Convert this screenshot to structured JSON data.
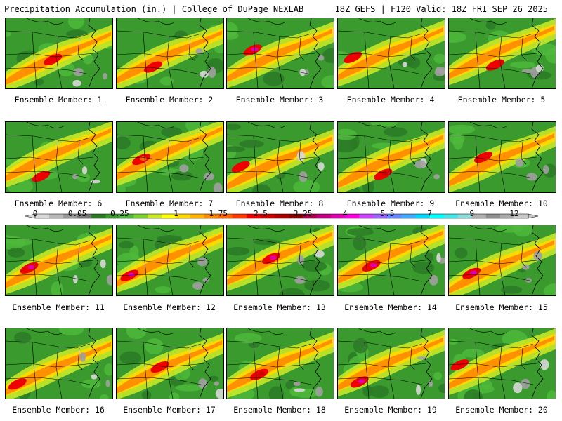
{
  "header": {
    "title": "Precipitation Accumulation (in.) | College of DuPage NEXLAB",
    "run_info": "18Z GEFS | F120 Valid: 18Z FRI SEP 26 2025"
  },
  "legend": {
    "tick_labels": [
      "0",
      "0.05",
      "0.25",
      "1",
      "1.75",
      "2.5",
      "3.25",
      "4",
      "5.5",
      "7",
      "9",
      "12"
    ],
    "tick_positions": [
      0,
      3,
      6,
      10,
      13,
      16,
      19,
      22,
      25,
      28,
      31,
      34
    ],
    "colors": [
      "#d8d8d8",
      "#b8b8b8",
      "#989898",
      "#787878",
      "#2a7a24",
      "#3a9a2e",
      "#4eb83a",
      "#7ad232",
      "#c8e828",
      "#ffff00",
      "#ffd800",
      "#ffb400",
      "#ff8c00",
      "#ff6400",
      "#ff3a00",
      "#ee0000",
      "#cc0000",
      "#aa0000",
      "#8a0000",
      "#a8004e",
      "#c00080",
      "#e000b0",
      "#ff00e0",
      "#cc44ff",
      "#9966ff",
      "#6688ff",
      "#44aaff",
      "#00d8ff",
      "#00ffff",
      "#44e6e6",
      "#8cdcdc",
      "#b0b0b0",
      "#909090",
      "#a8a8a8",
      "#c8c8c8"
    ]
  },
  "panels": [
    {
      "label": "Ensemble Member: 1",
      "max_color": "#ee0000"
    },
    {
      "label": "Ensemble Member: 2",
      "max_color": "#ee0000"
    },
    {
      "label": "Ensemble Member: 3",
      "max_color": "#e000b0"
    },
    {
      "label": "Ensemble Member: 4",
      "max_color": "#ee0000"
    },
    {
      "label": "Ensemble Member: 5",
      "max_color": "#ee0000"
    },
    {
      "label": "Ensemble Member: 6",
      "max_color": "#ee0000"
    },
    {
      "label": "Ensemble Member: 7",
      "max_color": "#ff6400"
    },
    {
      "label": "Ensemble Member: 8",
      "max_color": "#ee0000"
    },
    {
      "label": "Ensemble Member: 9",
      "max_color": "#cc0000"
    },
    {
      "label": "Ensemble Member: 10",
      "max_color": "#ee0000"
    },
    {
      "label": "Ensemble Member: 11",
      "max_color": "#e000b0"
    },
    {
      "label": "Ensemble Member: 12",
      "max_color": "#e000b0"
    },
    {
      "label": "Ensemble Member: 13",
      "max_color": "#e000b0"
    },
    {
      "label": "Ensemble Member: 14",
      "max_color": "#e000b0"
    },
    {
      "label": "Ensemble Member: 15",
      "max_color": "#e000b0"
    },
    {
      "label": "Ensemble Member: 16",
      "max_color": "#ee0000"
    },
    {
      "label": "Ensemble Member: 17",
      "max_color": "#ee0000"
    },
    {
      "label": "Ensemble Member: 18",
      "max_color": "#cc0000"
    },
    {
      "label": "Ensemble Member: 19",
      "max_color": "#e000b0"
    },
    {
      "label": "Ensemble Member: 20",
      "max_color": "#ee0000"
    }
  ]
}
